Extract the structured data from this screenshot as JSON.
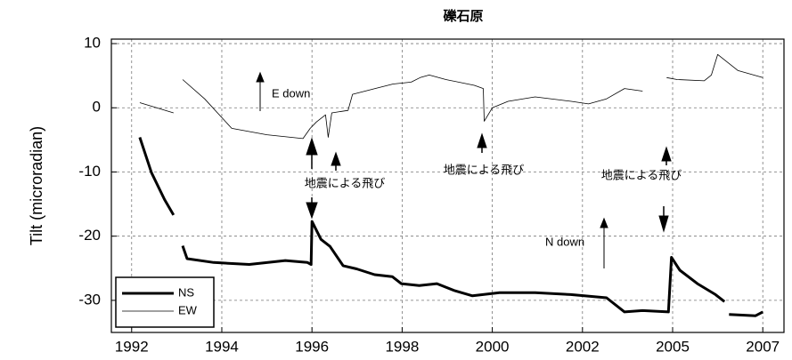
{
  "chart_data": {
    "type": "line",
    "title": "礫石原",
    "ylabel": "Tilt (microradian)",
    "xlim": [
      1991.55,
      2007.47
    ],
    "ylim": [
      -35,
      10.7
    ],
    "xticks": [
      1992,
      1994,
      1996,
      1998,
      2000,
      2002,
      2005,
      2007
    ],
    "yticks": [
      10,
      0,
      -10,
      -20,
      -30
    ],
    "grid": true,
    "legend": "lower left",
    "annotations": [
      "E down",
      "N down",
      "地震による飛び",
      "地震による飛び",
      "地震による飛び"
    ],
    "series": [
      {
        "name": "NS",
        "color": "#000000",
        "width": 3,
        "x": [
          1992.18,
          1992.44,
          1992.73,
          1992.93,
          null,
          1993.13,
          1993.23,
          1993.82,
          1994.61,
          1995.41,
          1995.9,
          1995.98,
          1996.0,
          1996.2,
          1996.4,
          1996.69,
          1996.99,
          1997.39,
          1997.78,
          1997.98,
          1998.38,
          1998.77,
          1999.17,
          1999.56,
          2000.16,
          2000.95,
          2001.74,
          2002.8,
          2003.4,
          2004.0,
          2004.86,
          2004.96,
          2005.16,
          2005.55,
          2005.95,
          2006.15,
          null,
          2006.25,
          2006.84,
          2007.0
        ],
        "values": [
          -4.6,
          -10.1,
          -14.3,
          -16.7,
          null,
          -21.5,
          -23.5,
          -24.1,
          -24.4,
          -23.8,
          -24.1,
          -24.4,
          -17.7,
          -20.5,
          -21.6,
          -24.6,
          -25.1,
          -26.0,
          -26.3,
          -27.4,
          -27.7,
          -27.4,
          -28.5,
          -29.3,
          -28.8,
          -28.8,
          -29.1,
          -29.6,
          -31.8,
          -31.6,
          -31.8,
          -23.3,
          -25.3,
          -27.4,
          -29.1,
          -30.2,
          null,
          -32.2,
          -32.4,
          -31.8
        ]
      },
      {
        "name": "EW",
        "color": "#000000",
        "width": 0.8,
        "x": [
          1992.18,
          1992.93,
          null,
          1993.13,
          1993.62,
          1994.22,
          1995.0,
          1995.8,
          1995.96,
          1996.1,
          1996.3,
          1996.36,
          1996.44,
          1996.8,
          1996.9,
          1997.4,
          1997.8,
          1998.2,
          1998.4,
          1998.6,
          1998.97,
          1999.6,
          1999.8,
          1999.82,
          2000.0,
          2000.35,
          2000.95,
          2001.75,
          2002.2,
          2002.8,
          2003.4,
          2004.0,
          null,
          2004.8,
          2005.1,
          2005.7,
          2005.86,
          2006.0,
          2006.45,
          2007.0
        ],
        "values": [
          0.8,
          -0.8,
          null,
          4.4,
          1.4,
          -3.2,
          -4.2,
          -4.8,
          -3.2,
          -2.2,
          -1.1,
          -4.6,
          -0.8,
          -0.4,
          2.1,
          3.0,
          3.7,
          4.0,
          4.7,
          5.1,
          4.4,
          3.5,
          3.0,
          -2.1,
          0.0,
          1.0,
          1.7,
          1.0,
          0.6,
          1.4,
          3.0,
          2.6,
          null,
          4.7,
          4.4,
          4.2,
          5.1,
          8.3,
          5.8,
          4.7
        ]
      }
    ]
  }
}
